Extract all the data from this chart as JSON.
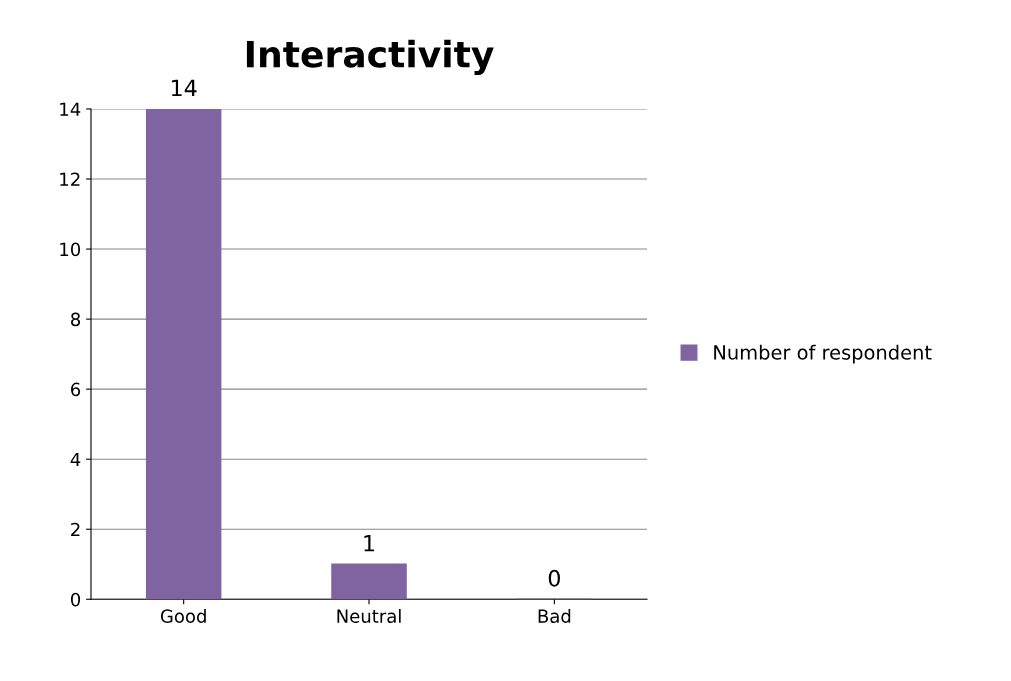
{
  "chart_data": {
    "type": "bar",
    "title": "Interactivity",
    "categories": [
      "Good",
      "Neutral",
      "Bad"
    ],
    "series": [
      {
        "name": "Number of respondent",
        "color": "#8064a2",
        "values": [
          14,
          1,
          0
        ]
      }
    ],
    "ylim": [
      0,
      14
    ],
    "yticks": [
      0,
      2,
      4,
      6,
      8,
      10,
      12,
      14
    ],
    "grid": "y",
    "legend": "right",
    "data_labels": true
  }
}
